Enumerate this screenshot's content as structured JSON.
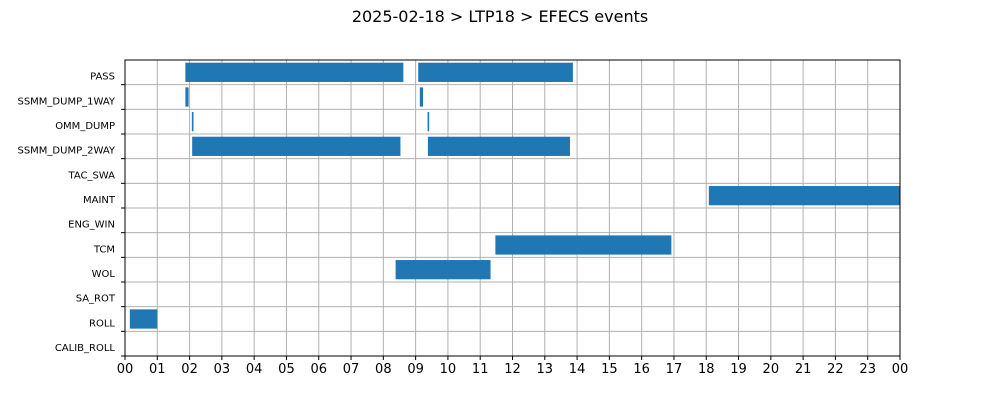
{
  "chart_data": {
    "type": "bar",
    "orientation": "horizontal-timeline",
    "title": "2025-02-18 > LTP18 > EFECS events",
    "xlabel": "",
    "ylabel": "",
    "x_unit": "hour",
    "xlim": [
      0,
      24
    ],
    "x_ticks": [
      "00",
      "01",
      "02",
      "03",
      "04",
      "05",
      "06",
      "07",
      "08",
      "09",
      "10",
      "11",
      "12",
      "13",
      "14",
      "15",
      "16",
      "17",
      "18",
      "19",
      "20",
      "21",
      "22",
      "23",
      "00"
    ],
    "grid": true,
    "bar_color": "#1f77b4",
    "categories": [
      "PASS",
      "SSMM_DUMP_1WAY",
      "OMM_DUMP",
      "SSMM_DUMP_2WAY",
      "TAC_SWA",
      "MAINT",
      "ENG_WIN",
      "TCM",
      "WOL",
      "SA_ROT",
      "ROLL",
      "CALIB_ROLL"
    ],
    "events": [
      {
        "category": "PASS",
        "start": 1.87,
        "end": 8.62
      },
      {
        "category": "PASS",
        "start": 9.08,
        "end": 13.87
      },
      {
        "category": "SSMM_DUMP_1WAY",
        "start": 1.87,
        "end": 1.97
      },
      {
        "category": "SSMM_DUMP_1WAY",
        "start": 9.13,
        "end": 9.23
      },
      {
        "category": "OMM_DUMP",
        "start": 2.07,
        "end": 2.12
      },
      {
        "category": "OMM_DUMP",
        "start": 9.37,
        "end": 9.42
      },
      {
        "category": "SSMM_DUMP_2WAY",
        "start": 2.08,
        "end": 8.53
      },
      {
        "category": "SSMM_DUMP_2WAY",
        "start": 9.38,
        "end": 13.78
      },
      {
        "category": "MAINT",
        "start": 18.08,
        "end": 24.0
      },
      {
        "category": "TCM",
        "start": 11.47,
        "end": 16.92
      },
      {
        "category": "WOL",
        "start": 8.38,
        "end": 11.32
      },
      {
        "category": "ROLL",
        "start": 0.15,
        "end": 1.0
      }
    ]
  }
}
